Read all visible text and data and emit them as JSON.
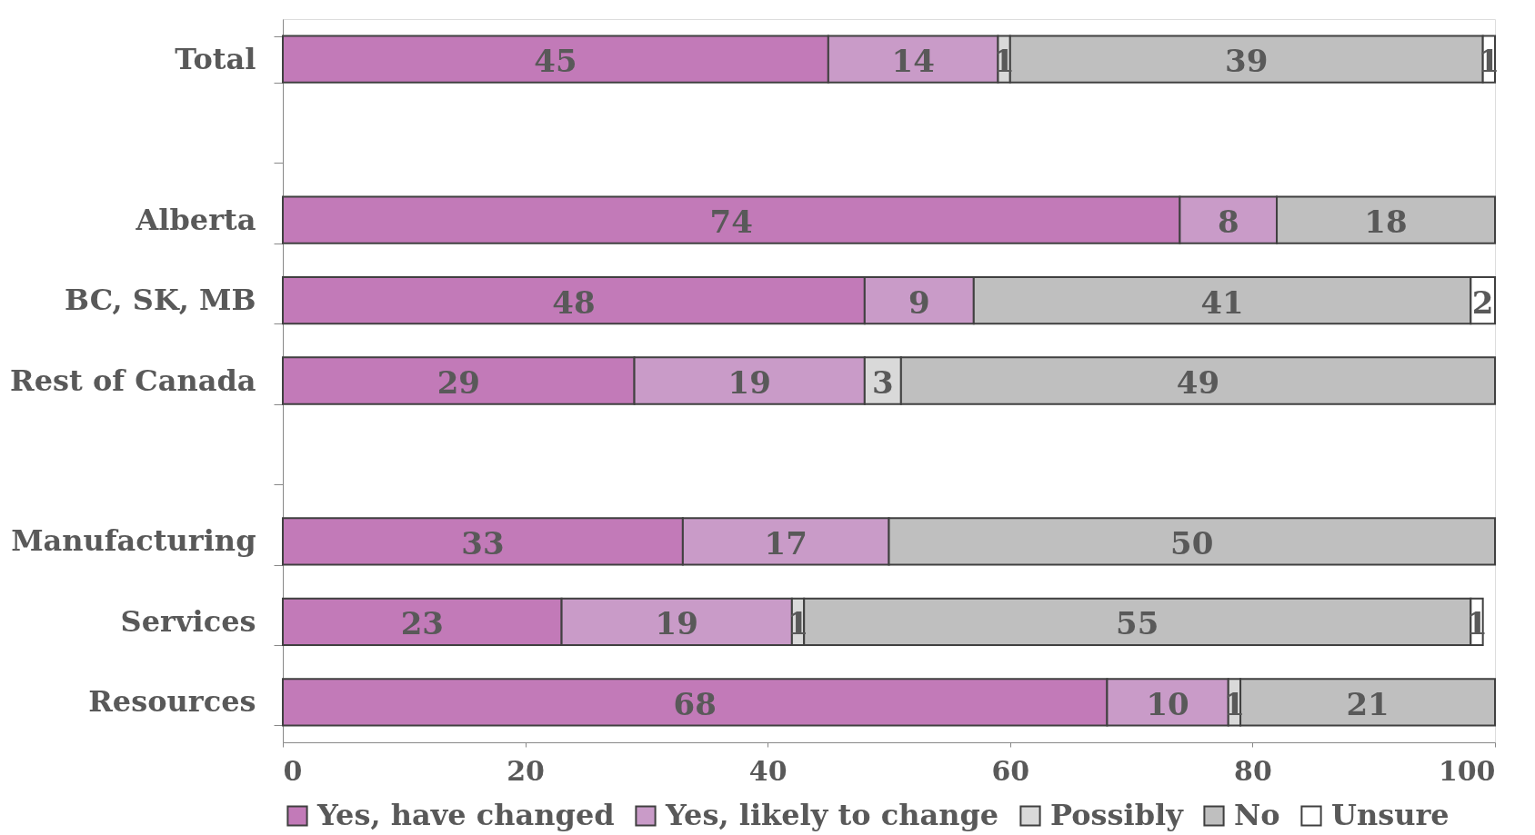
{
  "chart_data": {
    "type": "bar",
    "orientation": "horizontal",
    "stacked": true,
    "data_labels": true,
    "grid": false,
    "legend": "bottom",
    "categories": [
      "Total",
      null,
      "Alberta",
      "BC, SK, MB",
      "Rest of Canada",
      null,
      "Manufacturing",
      "Services",
      "Resources"
    ],
    "xlim": [
      0,
      100
    ],
    "xticks": [
      0,
      20,
      40,
      60,
      80,
      100
    ],
    "series": [
      {
        "name": "Yes, have changed",
        "color": "#c27ab8",
        "values": [
          45,
          null,
          74,
          48,
          29,
          null,
          33,
          23,
          68
        ]
      },
      {
        "name": "Yes, likely to change",
        "color": "#c99bc8",
        "values": [
          14,
          null,
          8,
          9,
          19,
          null,
          17,
          19,
          10
        ]
      },
      {
        "name": "Possibly",
        "color": "#d9d9d9",
        "values": [
          1,
          null,
          null,
          null,
          3,
          null,
          null,
          1,
          1
        ]
      },
      {
        "name": "No",
        "color": "#bfbfbf",
        "values": [
          39,
          null,
          18,
          41,
          49,
          null,
          50,
          55,
          21
        ]
      },
      {
        "name": "Unsure",
        "color": "#ffffff",
        "values": [
          1,
          null,
          null,
          2,
          null,
          null,
          null,
          1,
          null
        ]
      }
    ]
  }
}
